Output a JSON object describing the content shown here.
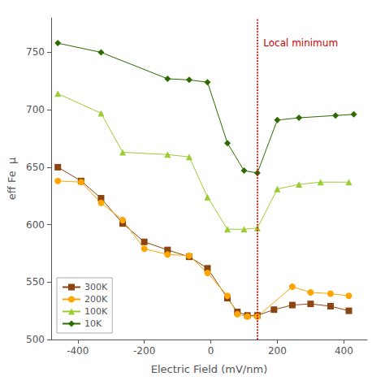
{
  "chart_data": {
    "type": "line",
    "title": "",
    "xlabel": "Electric Field (mV/nm)",
    "ylabel": "eff Fe  μ",
    "xlim": [
      -480,
      470
    ],
    "ylim": [
      500,
      780
    ],
    "xticks": [
      -400,
      -200,
      0,
      200,
      400
    ],
    "yticks": [
      500,
      550,
      600,
      650,
      700,
      750
    ],
    "grid": false,
    "legend": "lower left",
    "vlines": [
      {
        "x": 140,
        "color": "#cc0000",
        "line_style": "dotted"
      }
    ],
    "annotations": [
      {
        "text": "Local minimum",
        "x": 158,
        "y": 762,
        "color": "#cc0000"
      }
    ],
    "series": [
      {
        "name": "300K",
        "color": "#8B4513",
        "marker": "square",
        "x": [
          -460,
          -390,
          -330,
          -265,
          -200,
          -130,
          -65,
          -10,
          50,
          80,
          110,
          140,
          190,
          245,
          300,
          360,
          415
        ],
        "values": [
          650,
          638,
          623,
          601,
          585,
          578,
          572,
          562,
          536,
          524,
          521,
          521,
          526,
          530,
          531,
          529,
          525
        ]
      },
      {
        "name": "200K",
        "color": "#FFA500",
        "marker": "circle",
        "x": [
          -460,
          -390,
          -330,
          -265,
          -200,
          -130,
          -65,
          -10,
          50,
          80,
          110,
          140,
          245,
          300,
          360,
          415
        ],
        "values": [
          638,
          637,
          619,
          604,
          579,
          574,
          573,
          558,
          538,
          522,
          520,
          520,
          546,
          541,
          540,
          538
        ]
      },
      {
        "name": "100K",
        "color": "#9ACD32",
        "marker": "triangle",
        "x": [
          -460,
          -330,
          -265,
          -130,
          -65,
          -10,
          50,
          100,
          140,
          200,
          265,
          330,
          415
        ],
        "values": [
          714,
          697,
          663,
          661,
          659,
          624,
          596,
          596,
          597,
          631,
          635,
          637,
          637
        ]
      },
      {
        "name": "10K",
        "color": "#2d6a00",
        "marker": "diamond",
        "x": [
          -460,
          -330,
          -130,
          -65,
          -10,
          50,
          100,
          140,
          200,
          265,
          375,
          430
        ],
        "values": [
          758,
          750,
          727,
          726,
          724,
          671,
          647,
          645,
          691,
          693,
          695,
          696
        ]
      }
    ]
  }
}
